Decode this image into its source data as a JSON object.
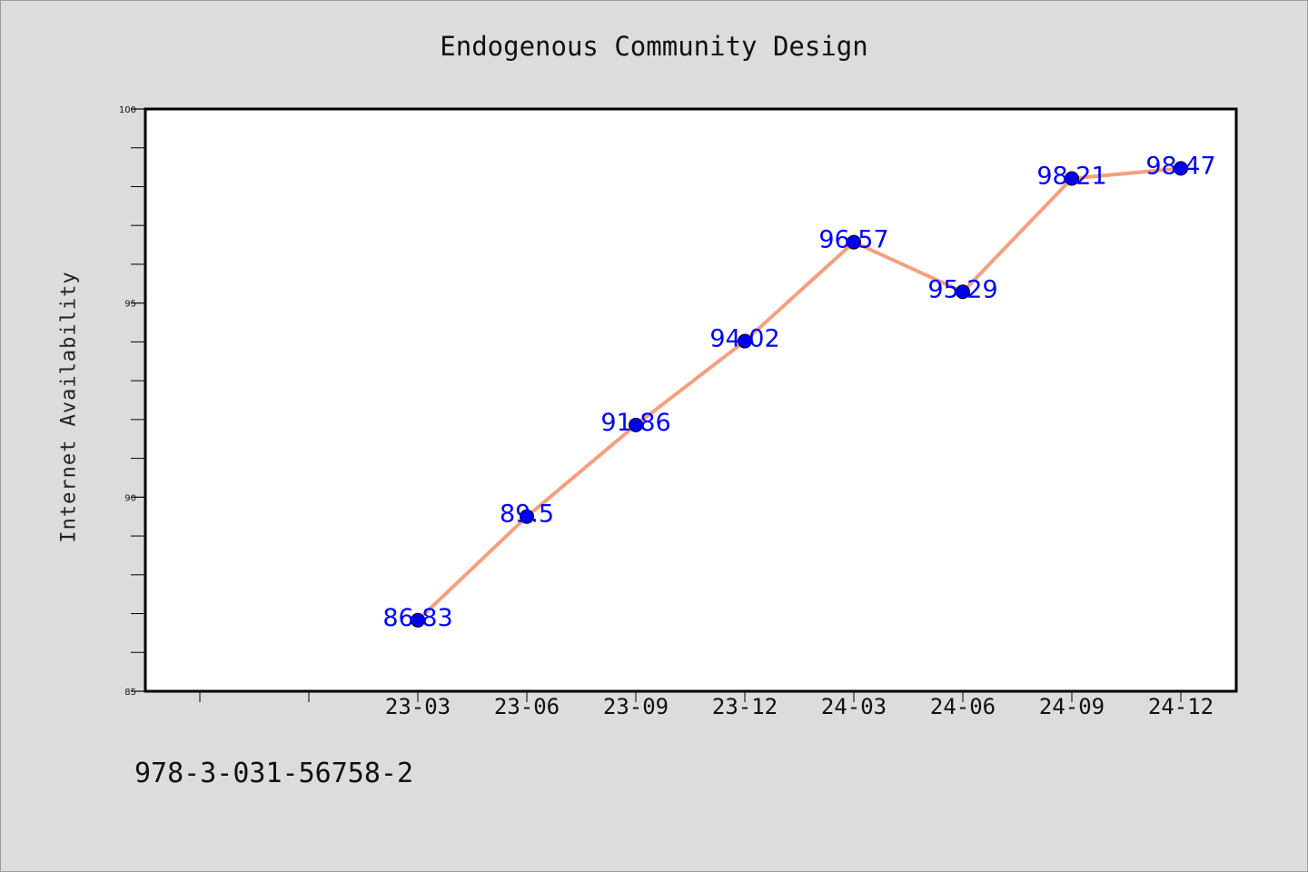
{
  "title": "Endogenous Community Design",
  "footer_text": "978-3-031-56758-2",
  "colors": {
    "background": "#dcdcdc",
    "plot_background": "#ffffff",
    "line": "#f4a07e",
    "marker": "#0000ee",
    "data_label": "#0000ff"
  },
  "chart_data": {
    "type": "line",
    "title": "Endogenous Community Design",
    "xlabel": "",
    "ylabel": "Internet Availability",
    "categories": [
      "23-03",
      "23-06",
      "23-09",
      "23-12",
      "24-03",
      "24-06",
      "24-09",
      "24-12"
    ],
    "series": [
      {
        "values": [
          86.83,
          89.5,
          91.86,
          94.02,
          96.57,
          95.29,
          98.21,
          98.47
        ]
      }
    ],
    "data_labels": [
      "86.83",
      "89.5",
      "91.86",
      "94.02",
      "96.57",
      "95.29",
      "98.21",
      "98.47"
    ],
    "ylim": [
      85,
      100
    ],
    "yticks": [
      85,
      90,
      95,
      100
    ],
    "grid": false,
    "legend": "none"
  }
}
